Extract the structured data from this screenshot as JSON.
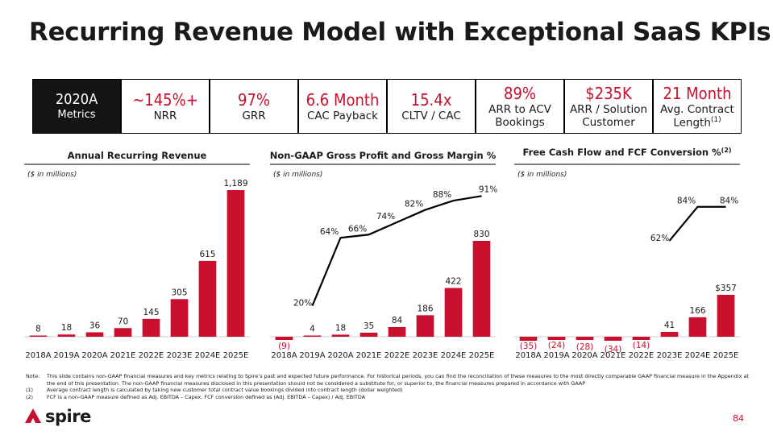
{
  "title": "Recurring Revenue Model with Exceptional SaaS KPIs",
  "kpis": [
    {
      "value": "2020A",
      "label": "Metrics",
      "sup": ""
    },
    {
      "value": "~145%+",
      "label": "NRR",
      "sup": ""
    },
    {
      "value": "97%",
      "label": "GRR",
      "sup": ""
    },
    {
      "value": "6.6 Month",
      "label": "CAC Payback",
      "sup": ""
    },
    {
      "value": "15.4x",
      "label": "CLTV / CAC",
      "sup": ""
    },
    {
      "value": "89%",
      "label": "ARR to ACV Bookings",
      "sup": ""
    },
    {
      "value": "$235K",
      "label": "ARR / Solution Customer",
      "sup": ""
    },
    {
      "value": "21 Month",
      "label": "Avg. Contract Length",
      "sup": "(1)"
    }
  ],
  "colors": {
    "accent": "#c8102e",
    "dark": "#141414"
  },
  "chart_data": [
    {
      "type": "bar",
      "title": "Annual Recurring Revenue",
      "unit_label": "($ in millions)",
      "categories": [
        "2018A",
        "2019A",
        "2020A",
        "2021E",
        "2022E",
        "2023E",
        "2024E",
        "2025E"
      ],
      "values": [
        8,
        18,
        36,
        70,
        145,
        305,
        615,
        1189
      ],
      "value_labels": [
        "8",
        "18",
        "36",
        "70",
        "145",
        "305",
        "615",
        "1,189"
      ]
    },
    {
      "type": "bar+line",
      "title": "Non-GAAP Gross Profit and Gross Margin %",
      "unit_label": "($ in millions)",
      "categories": [
        "2018A",
        "2019A",
        "2020A",
        "2021E",
        "2022E",
        "2023E",
        "2024E",
        "2025E"
      ],
      "values": [
        -9,
        4,
        18,
        35,
        84,
        186,
        422,
        830
      ],
      "value_labels": [
        "(9)",
        "4",
        "18",
        "35",
        "84",
        "186",
        "422",
        "830"
      ],
      "line_values": [
        null,
        20,
        64,
        66,
        74,
        82,
        88,
        91
      ],
      "line_labels": [
        "",
        "20%",
        "64%",
        "66%",
        "74%",
        "82%",
        "88%",
        "91%"
      ]
    },
    {
      "type": "bar+line",
      "title": "Free Cash Flow and FCF Conversion %",
      "title_sup": "(2)",
      "unit_label": "($ in millions)",
      "categories": [
        "2018A",
        "2019A",
        "2020A",
        "2021E",
        "2022E",
        "2023E",
        "2024E",
        "2025E"
      ],
      "values": [
        -35,
        -24,
        -28,
        -34,
        -14,
        41,
        166,
        357
      ],
      "value_labels": [
        "(35)",
        "(24)",
        "(28)",
        "(34)",
        "(14)",
        "41",
        "166",
        "$357"
      ],
      "line_values": [
        null,
        null,
        null,
        null,
        null,
        62,
        84,
        84
      ],
      "line_labels": [
        "",
        "",
        "",
        "",
        "",
        "62%",
        "84%",
        "84%"
      ]
    }
  ],
  "notes": [
    {
      "key": "Note:",
      "text": "This slide contains non-GAAP financial measures and key metrics relating to Spire’s past and expected future performance. For historical periods, you can find the reconciliation of these measures to the most directly comparable GAAP financial measure in the Appendix at the end of this presentation. The non-GAAP financial measures disclosed in this presentation should not be considered a substitute for, or superior to, the financial measures prepared in accordance with GAAP"
    },
    {
      "key": "(1)",
      "text": "Average contract length is calculated by taking new customer total contract value bookings divided into contract length (dollar weighted)"
    },
    {
      "key": "(2)",
      "text": "FCF is a non-GAAP measure defined as Adj. EBITDA – Capex. FCF conversion defined as (Adj. EBITDA – Capex) / Adj. EBITDA"
    }
  ],
  "logo": {
    "text": "spire"
  },
  "page_number": "84"
}
